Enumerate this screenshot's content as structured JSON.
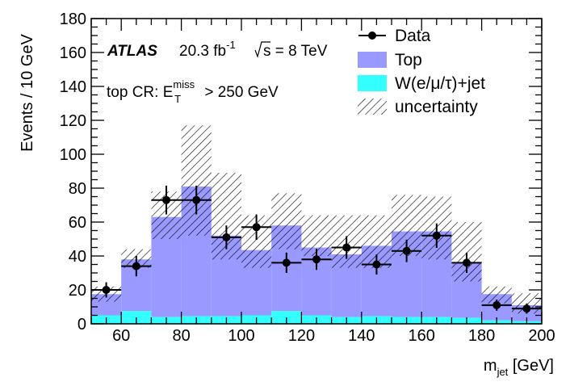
{
  "chart_data": {
    "type": "bar",
    "subtype": "stacked-histogram",
    "xlabel": "m",
    "xlabel_sub": "jet",
    "xlabel_unit": " [GeV]",
    "ylabel": "Events / 10 GeV",
    "xlim": [
      50,
      200
    ],
    "ylim": [
      0,
      180
    ],
    "xticks": [
      60,
      80,
      100,
      120,
      140,
      160,
      180,
      200
    ],
    "yticks": [
      0,
      20,
      40,
      60,
      80,
      100,
      120,
      140,
      160,
      180
    ],
    "bin_edges": [
      50,
      60,
      70,
      80,
      90,
      100,
      110,
      120,
      130,
      140,
      150,
      160,
      170,
      180,
      190,
      200
    ],
    "series": [
      {
        "name": "W(e/μ/τ)+jet",
        "color": "#33ffff",
        "values": [
          5,
          7.5,
          4,
          4.5,
          4.5,
          5,
          7.5,
          5,
          4,
          4.5,
          4,
          4,
          3.5,
          2,
          1.5
        ]
      },
      {
        "name": "Top",
        "color": "#9999ff",
        "values": [
          12.5,
          30.5,
          59,
          76.5,
          47.5,
          38.5,
          50.5,
          40,
          37,
          41.5,
          50.5,
          50.5,
          32.5,
          15.5,
          9.5
        ]
      },
      {
        "name": "uncertainty",
        "style": "hatched",
        "low": [
          13,
          33,
          50,
          52,
          38,
          33,
          44,
          40,
          33,
          33,
          40,
          38,
          25,
          12,
          6
        ],
        "high": [
          22,
          44,
          78,
          117,
          89,
          64,
          77,
          64,
          64,
          64,
          76,
          75,
          60,
          22,
          18
        ]
      },
      {
        "name": "Data",
        "style": "points",
        "values": [
          20,
          34,
          73,
          73,
          51,
          57,
          36,
          38,
          45,
          35,
          43,
          52,
          36,
          11,
          9
        ],
        "errors": [
          4.5,
          6,
          8.5,
          8.5,
          7,
          7.5,
          6,
          6.2,
          6.7,
          5.9,
          6.6,
          7.2,
          6,
          3.3,
          3
        ]
      }
    ],
    "legend": {
      "position": "top-right",
      "entries": [
        {
          "label": "Data",
          "marker": "point-with-error"
        },
        {
          "label": "Top",
          "marker": "fill",
          "color": "#9999ff"
        },
        {
          "label": "W(e/μ/τ)+jet",
          "marker": "fill",
          "color": "#33ffff"
        },
        {
          "label": "uncertainty",
          "marker": "hatch"
        }
      ]
    },
    "annotations": {
      "experiment": "ATLAS",
      "luminosity": "20.3 fb",
      "luminosity_exp": "-1",
      "energy": "s = 8 TeV",
      "region": "top CR: E",
      "region_sup": "miss",
      "region_sub": "T",
      "region_cut": " > 250 GeV"
    }
  }
}
